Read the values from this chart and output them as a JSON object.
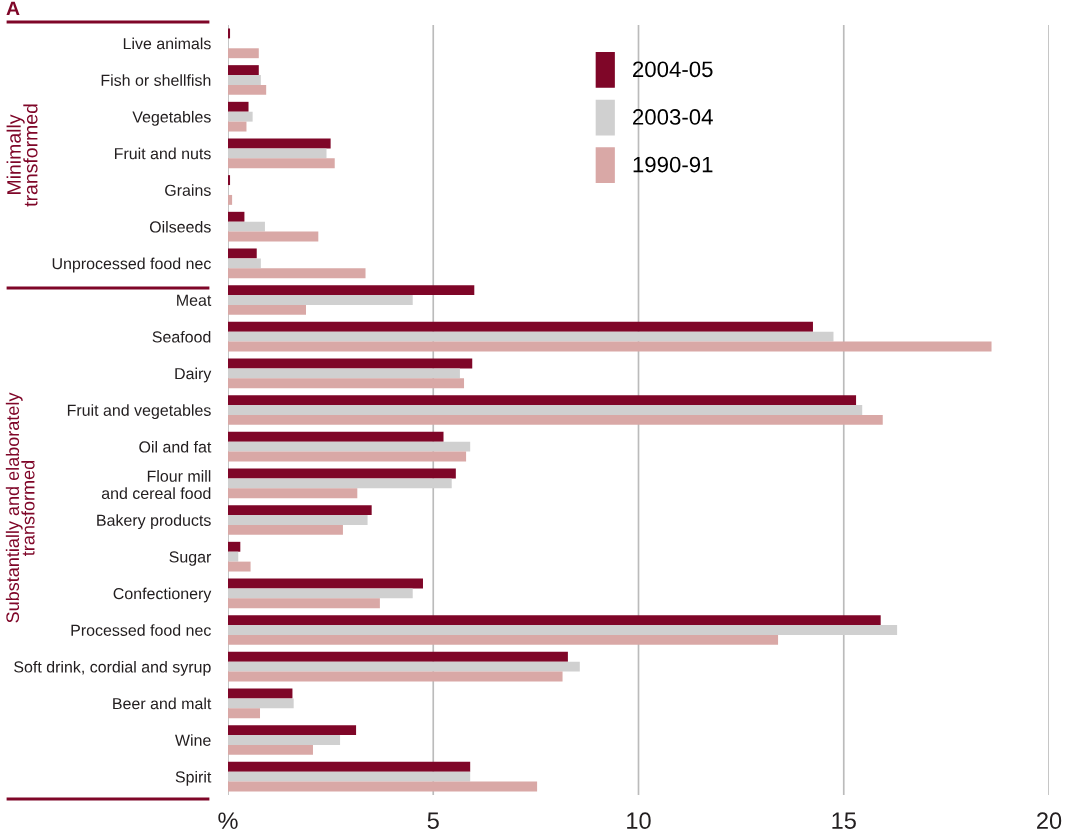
{
  "chart_data": {
    "type": "bar",
    "orientation": "horizontal",
    "categories": [
      "Live animals",
      "Fish or shellfish",
      "Vegetables",
      "Fruit and nuts",
      "Grains",
      "Oilseeds",
      "Unprocessed food nec",
      "Meat",
      "Seafood",
      "Dairy",
      "Fruit and vegetables",
      "Oil and fat",
      "Flour mill\nand cereal food",
      "Bakery products",
      "Sugar",
      "Confectionery",
      "Processed food nec",
      "Soft drink, cordial and syrup",
      "Beer and malt",
      "Wine",
      "Spirit"
    ],
    "series": [
      {
        "name": "2004-05",
        "color": "#7f0628",
        "values": [
          0.05,
          0.75,
          0.5,
          2.5,
          0.05,
          0.4,
          0.7,
          6.0,
          14.25,
          5.95,
          15.3,
          5.25,
          5.55,
          3.5,
          0.3,
          4.75,
          15.9,
          8.28,
          1.57,
          3.12,
          5.9
        ]
      },
      {
        "name": "2003-04",
        "color": "#d0d0d0",
        "values": [
          null,
          0.8,
          0.6,
          2.4,
          null,
          0.9,
          0.8,
          4.5,
          14.75,
          5.65,
          15.45,
          5.9,
          5.45,
          3.4,
          0.25,
          4.5,
          16.3,
          8.57,
          1.6,
          2.73,
          5.9
        ]
      },
      {
        "name": "1990-91",
        "color": "#d9a8a6",
        "values": [
          0.75,
          0.93,
          0.45,
          2.6,
          0.1,
          2.2,
          3.35,
          1.9,
          18.6,
          5.75,
          15.95,
          5.8,
          3.15,
          2.8,
          0.55,
          3.7,
          13.4,
          8.15,
          0.78,
          2.07,
          7.53
        ]
      }
    ],
    "xlim": [
      0,
      20
    ],
    "xticks": [
      {
        "value": 0,
        "label": "%"
      },
      5,
      10,
      15,
      20
    ],
    "grid": "x",
    "legend": "top",
    "annotations": [
      "A",
      "Minimally transformed",
      "Substantially and elaborately transformed"
    ]
  }
}
